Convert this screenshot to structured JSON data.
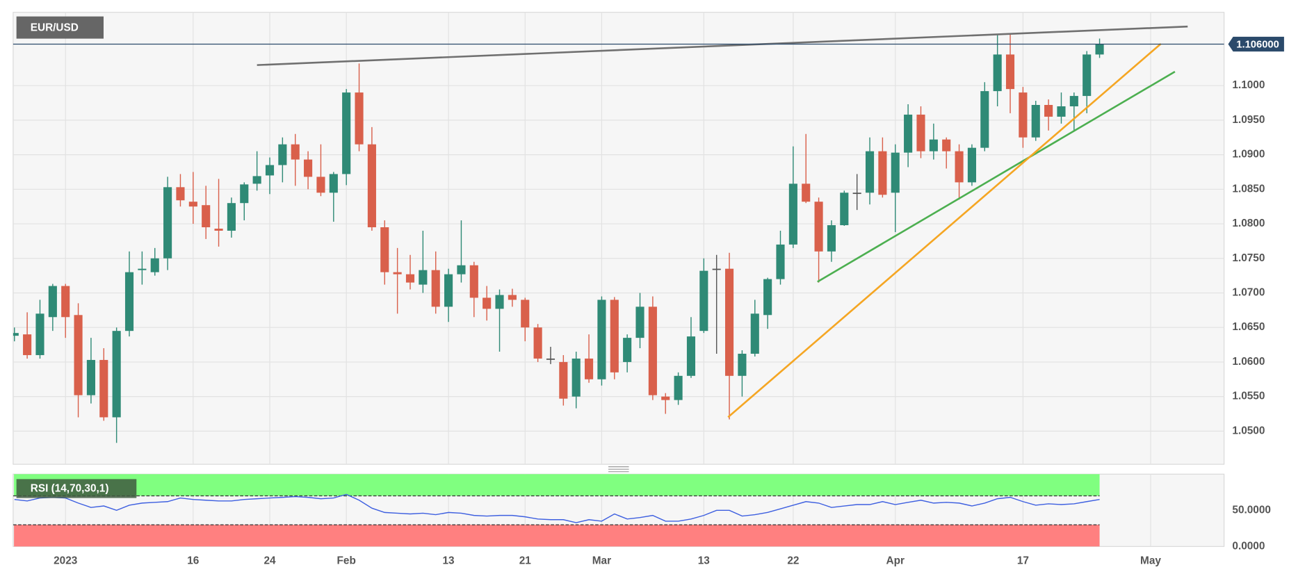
{
  "chart_data": [
    {
      "type": "candlestick",
      "title": "EUR/USD",
      "open": [
        1.0638,
        1.064,
        1.061,
        1.0665,
        1.071,
        1.0668,
        1.0552,
        1.0603,
        1.052,
        1.0645,
        1.0733,
        1.073,
        1.075,
        1.0853,
        1.0832,
        1.0827,
        1.0793,
        1.079,
        1.083,
        1.0858,
        1.087,
        1.0885,
        1.0915,
        1.0893,
        1.0868,
        1.0845,
        1.0872,
        1.099,
        1.0915,
        1.0795,
        1.073,
        1.0727,
        1.0712,
        1.0733,
        1.068,
        1.0727,
        1.074,
        1.0693,
        1.0677,
        1.0697,
        1.069,
        1.065,
        1.0605,
        1.06,
        1.055,
        1.0605,
        1.0575,
        1.069,
        1.06,
        1.0635,
        1.068,
        1.055,
        1.0545,
        1.058,
        1.0645,
        1.0735,
        1.0735,
        1.058,
        1.0612,
        1.0668,
        1.072,
        1.077,
        1.0858,
        1.0832,
        1.076,
        1.0798,
        1.0845,
        1.0845,
        1.0905,
        1.0845,
        1.0903,
        1.0958,
        1.0905,
        1.0922,
        1.0905,
        1.086,
        1.091,
        1.0992,
        1.1045,
        1.099,
        1.0925,
        1.0972,
        1.0955,
        1.097,
        1.0985,
        1.1045
      ],
      "high": [
        1.065,
        1.0672,
        1.069,
        1.0713,
        1.0713,
        1.0685,
        1.0635,
        1.062,
        1.065,
        1.076,
        1.076,
        1.0765,
        1.0868,
        1.0872,
        1.0875,
        1.0855,
        1.0865,
        1.0838,
        1.086,
        1.0905,
        1.0896,
        1.0925,
        1.093,
        1.0905,
        1.0915,
        1.0875,
        1.0995,
        1.1032,
        1.094,
        1.0805,
        1.0765,
        1.0755,
        1.079,
        1.076,
        1.0735,
        1.0805,
        1.0745,
        1.071,
        1.0705,
        1.0706,
        1.0693,
        1.0655,
        1.0622,
        1.061,
        1.0615,
        1.064,
        1.0695,
        1.0694,
        1.064,
        1.07,
        1.0695,
        1.0555,
        1.0585,
        1.0665,
        1.075,
        1.0755,
        1.0758,
        1.0617,
        1.069,
        1.0722,
        1.079,
        1.0912,
        1.093,
        1.0838,
        1.0805,
        1.0848,
        1.0872,
        1.0925,
        1.0925,
        1.0915,
        1.0973,
        1.097,
        1.0945,
        1.0925,
        1.0915,
        1.0915,
        1.1005,
        1.1075,
        1.1076,
        1.0998,
        1.0978,
        1.098,
        1.099,
        1.099,
        1.105,
        1.1068
      ],
      "low": [
        1.063,
        1.0605,
        1.0605,
        1.0645,
        1.0635,
        1.052,
        1.054,
        1.0515,
        1.0483,
        1.0637,
        1.0712,
        1.0725,
        1.0733,
        1.0825,
        1.08,
        1.0778,
        1.0767,
        1.078,
        1.0805,
        1.0848,
        1.0843,
        1.086,
        1.0855,
        1.085,
        1.084,
        1.0803,
        1.0856,
        1.0905,
        1.079,
        1.0712,
        1.067,
        1.0705,
        1.07,
        1.067,
        1.0658,
        1.0715,
        1.0665,
        1.066,
        1.0615,
        1.068,
        1.063,
        1.06,
        1.0597,
        1.0537,
        1.0533,
        1.057,
        1.0566,
        1.0575,
        1.0585,
        1.062,
        1.0545,
        1.0525,
        1.0538,
        1.0577,
        1.0642,
        1.0612,
        1.0517,
        1.055,
        1.0608,
        1.0648,
        1.0712,
        1.0765,
        1.083,
        1.0715,
        1.0745,
        1.0797,
        1.082,
        1.0828,
        1.0838,
        1.0788,
        1.0882,
        1.0895,
        1.0893,
        1.088,
        1.0835,
        1.0855,
        1.0905,
        1.097,
        1.096,
        1.091,
        1.092,
        1.0935,
        1.0945,
        1.0935,
        1.096,
        1.104
      ],
      "close": [
        1.0642,
        1.061,
        1.067,
        1.071,
        1.0665,
        1.0552,
        1.0603,
        1.052,
        1.0645,
        1.073,
        1.0735,
        1.075,
        1.0853,
        1.0834,
        1.0825,
        1.0795,
        1.079,
        1.083,
        1.0857,
        1.0869,
        1.0885,
        1.0915,
        1.0893,
        1.0868,
        1.0845,
        1.0872,
        1.099,
        1.0915,
        1.0795,
        1.073,
        1.0727,
        1.0715,
        1.0733,
        1.068,
        1.0727,
        1.074,
        1.0693,
        1.0677,
        1.0697,
        1.069,
        1.065,
        1.0605,
        1.0605,
        1.0547,
        1.0605,
        1.0575,
        1.069,
        1.0585,
        1.0635,
        1.068,
        1.0552,
        1.0545,
        1.058,
        1.0637,
        1.0732,
        1.0735,
        1.058,
        1.0612,
        1.067,
        1.072,
        1.077,
        1.0858,
        1.0832,
        1.076,
        1.0798,
        1.0845,
        1.0845,
        1.0905,
        1.0842,
        1.0903,
        1.0958,
        1.0905,
        1.0922,
        1.0905,
        1.086,
        1.091,
        1.0992,
        1.1045,
        1.0995,
        1.0925,
        1.0972,
        1.0955,
        1.097,
        1.0985,
        1.1045,
        1.106
      ],
      "up_color": "#2f8a76",
      "down_color": "#d9604b",
      "doji_color": "#555555",
      "xlim": [
        -0.1,
        94.75
      ],
      "xticks": [
        {
          "value": 4,
          "label": "2023"
        },
        {
          "value": 14,
          "label": "16"
        },
        {
          "value": 20,
          "label": "24"
        },
        {
          "value": 26,
          "label": "Feb"
        },
        {
          "value": 34,
          "label": "13"
        },
        {
          "value": 40,
          "label": "21"
        },
        {
          "value": 46,
          "label": "Mar"
        },
        {
          "value": 54,
          "label": "13"
        },
        {
          "value": 61,
          "label": "22"
        },
        {
          "value": 69,
          "label": "Apr"
        },
        {
          "value": 79,
          "label": "17"
        },
        {
          "value": 89,
          "label": "May"
        }
      ],
      "ylim": [
        1.0452,
        1.1106
      ],
      "yticks": [
        {
          "value": 1.05,
          "label": "1.0500"
        },
        {
          "value": 1.055,
          "label": "1.0550"
        },
        {
          "value": 1.06,
          "label": "1.0600"
        },
        {
          "value": 1.065,
          "label": "1.0650"
        },
        {
          "value": 1.07,
          "label": "1.0700"
        },
        {
          "value": 1.075,
          "label": "1.0750"
        },
        {
          "value": 1.08,
          "label": "1.0800"
        },
        {
          "value": 1.085,
          "label": "1.0850"
        },
        {
          "value": 1.09,
          "label": "1.0900"
        },
        {
          "value": 1.095,
          "label": "1.0950"
        },
        {
          "value": 1.1,
          "label": "1.1000"
        }
      ],
      "grid": true,
      "last_price": {
        "value": 1.106,
        "label": "1.106000",
        "color": "#2b4a6b"
      },
      "trendlines": [
        {
          "x": [
            19.0,
            91.9
          ],
          "y": [
            1.10297,
            1.10855
          ],
          "color": "#707070"
        },
        {
          "x": [
            62.9,
            90.9
          ],
          "y": [
            1.07161,
            1.10202
          ],
          "color": "#4caf50"
        },
        {
          "x": [
            55.9,
            89.8
          ],
          "y": [
            1.05202,
            1.10605
          ],
          "color": "#f5a623"
        }
      ]
    },
    {
      "type": "line",
      "title": "RSI (14,70,30,1)",
      "values": [
        65,
        63,
        67,
        68,
        67,
        60,
        54,
        56,
        50,
        57,
        60,
        61,
        62,
        67,
        65,
        64,
        63,
        63,
        65,
        66,
        67,
        68,
        69,
        68,
        66,
        67,
        72,
        64,
        53,
        47,
        46,
        45,
        46,
        44,
        47,
        46,
        43,
        42,
        43,
        43,
        41,
        38,
        37,
        37,
        33,
        37,
        35,
        45,
        38,
        40,
        43,
        35,
        35,
        38,
        43,
        50,
        50,
        42,
        44,
        47,
        52,
        57,
        62,
        60,
        54,
        56,
        58,
        58,
        62,
        58,
        61,
        64,
        60,
        61,
        60,
        56,
        60,
        66,
        68,
        62,
        57,
        59,
        58,
        59,
        62,
        65
      ],
      "color": "#3d5fe0",
      "ylim": [
        0,
        100
      ],
      "yticks": [
        {
          "value": 50,
          "label": "50.0000"
        },
        {
          "value": 0,
          "label": "0.0000"
        }
      ],
      "overbought": 70,
      "oversold": 30,
      "overbought_color": "#80ff80",
      "oversold_color": "#ff8080"
    }
  ]
}
